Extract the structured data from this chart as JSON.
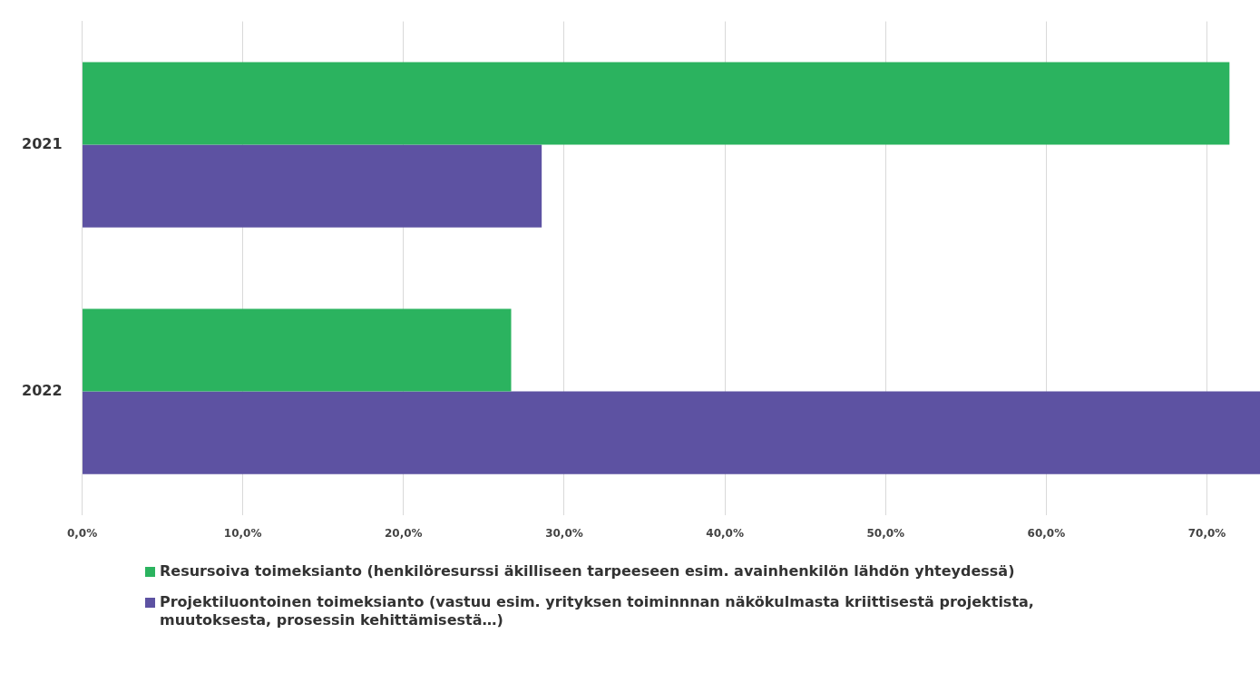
{
  "chart_data": {
    "type": "bar",
    "orientation": "horizontal",
    "categories": [
      "2021",
      "2022"
    ],
    "series": [
      {
        "name": "Resursoiva toimeksianto (henkilöresurssi äkilliseen tarpeeseen esim. avainhenkilön lähdön yhteydessä)",
        "color": "#2bb35f",
        "values": [
          71.4,
          26.7
        ]
      },
      {
        "name": "Projektiluontoinen toimeksianto (vastuu esim. yrityksen toiminnnan näkökulmasta kriittisestä projektista, muutoksesta, prosessin kehittämisestä…)",
        "color": "#5d52a2",
        "values": [
          28.6,
          73.3
        ]
      }
    ],
    "xlim": [
      0,
      73.3
    ],
    "xticks": [
      {
        "value": 0,
        "label": "0,0%"
      },
      {
        "value": 10,
        "label": "10,0%"
      },
      {
        "value": 20,
        "label": "20,0%"
      },
      {
        "value": 30,
        "label": "30,0%"
      },
      {
        "value": 40,
        "label": "40,0%"
      },
      {
        "value": 50,
        "label": "50,0%"
      },
      {
        "value": 60,
        "label": "60,0%"
      },
      {
        "value": 70,
        "label": "70,0%"
      }
    ],
    "grid": "x",
    "legend": "bottom"
  }
}
